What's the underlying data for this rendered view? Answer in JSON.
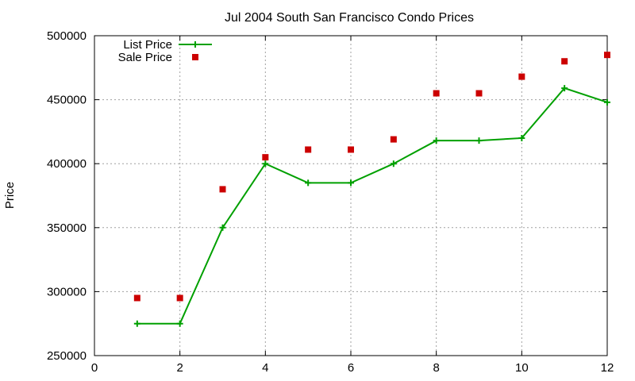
{
  "chart_data": {
    "type": "line",
    "title": "Jul 2004 South San Francisco Condo Prices",
    "xlabel": "",
    "ylabel": "Price",
    "xlim": [
      0,
      12
    ],
    "ylim": [
      250000,
      500000
    ],
    "xticks": [
      0,
      2,
      4,
      6,
      8,
      10,
      12
    ],
    "yticks": [
      250000,
      300000,
      350000,
      400000,
      450000,
      500000
    ],
    "grid": true,
    "legend_position": "top-left",
    "series": [
      {
        "name": "List Price",
        "style": "line-with-plus-markers",
        "color": "#00a000",
        "x": [
          1,
          2,
          3,
          4,
          5,
          6,
          7,
          8,
          9,
          10,
          11,
          12
        ],
        "y": [
          275000,
          275000,
          350000,
          400000,
          385000,
          385000,
          400000,
          418000,
          418000,
          420000,
          459000,
          448000
        ]
      },
      {
        "name": "Sale Price",
        "style": "square-points",
        "color": "#cc0000",
        "x": [
          1,
          2,
          3,
          4,
          5,
          6,
          7,
          8,
          9,
          10,
          11,
          12
        ],
        "y": [
          295000,
          295000,
          380000,
          405000,
          411000,
          411000,
          419000,
          455000,
          455000,
          468000,
          480000,
          485000
        ]
      }
    ]
  }
}
